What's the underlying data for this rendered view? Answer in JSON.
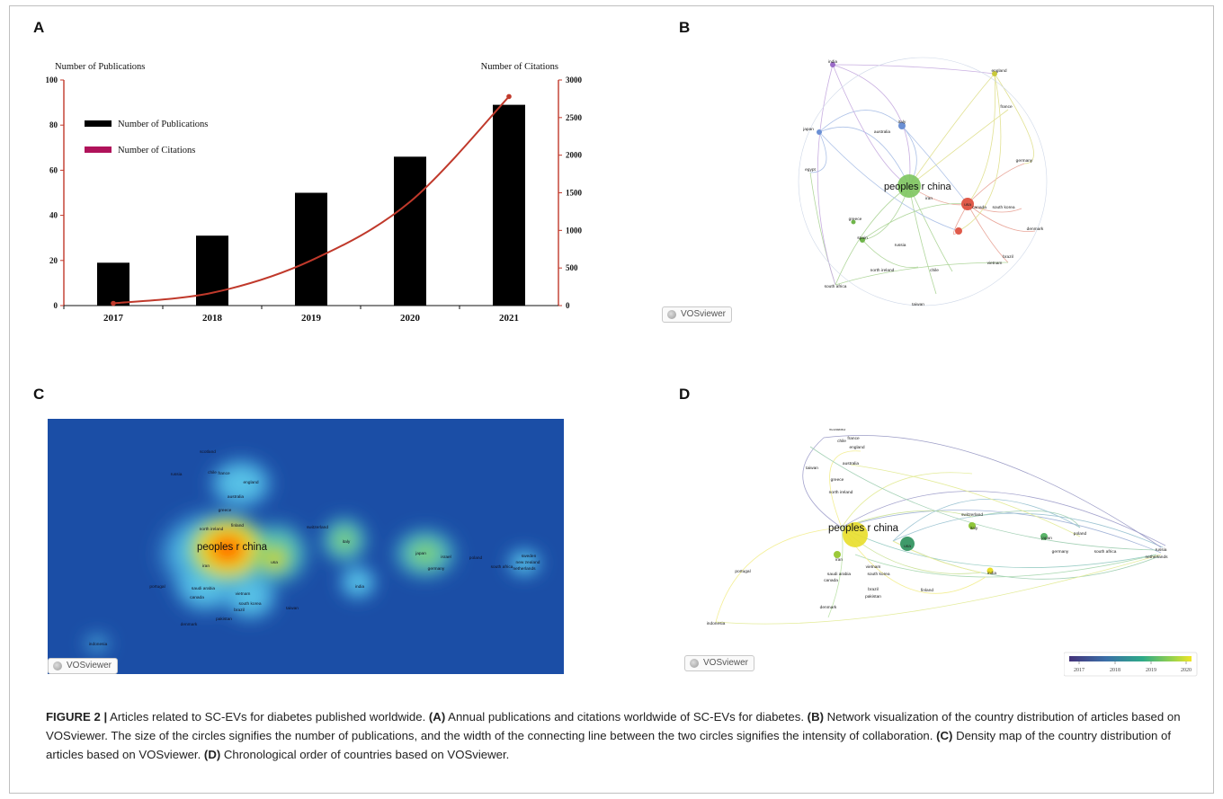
{
  "panels": {
    "a": "A",
    "b": "B",
    "c": "C",
    "d": "D"
  },
  "chart_data": {
    "type": "bar",
    "categories": [
      "2017",
      "2018",
      "2019",
      "2020",
      "2021"
    ],
    "series": [
      {
        "name": "Number of Publications",
        "type": "bar",
        "axis": "left",
        "values": [
          19,
          31,
          50,
          66,
          89
        ],
        "color": "#000000"
      },
      {
        "name": "Number of Citations",
        "type": "line",
        "axis": "right",
        "values": [
          30,
          170,
          600,
          1380,
          2780
        ],
        "color": "#c0392b"
      }
    ],
    "ylabel": "Number of Publications",
    "y2label": "Number of Citations",
    "ylim": [
      0,
      100
    ],
    "y2lim": [
      0,
      3000
    ],
    "yticks": [
      "0",
      "20",
      "40",
      "60",
      "80",
      "100"
    ],
    "y2ticks": [
      "0",
      "500",
      "1000",
      "1500",
      "2000",
      "2500",
      "3000"
    ],
    "legend": [
      "Number of Publications",
      "Number of Citations"
    ],
    "legend_position": "top-left",
    "legend_colors": [
      "#000000",
      "#b0125a"
    ]
  },
  "network_b": {
    "main_label": "peoples r china",
    "labels": [
      "india",
      "england",
      "italy",
      "france",
      "japan",
      "australia",
      "germany",
      "egypt",
      "usa",
      "canada",
      "south korea",
      "denmark",
      "iran",
      "greece",
      "spain",
      "russia",
      "brazil",
      "north ireland",
      "chile",
      "vietnam",
      "south africa",
      "taiwan"
    ],
    "watermark": "VOSviewer"
  },
  "density_c": {
    "main_label": "peoples r china",
    "labels": [
      "usa",
      "italy",
      "japan",
      "india",
      "iran",
      "south korea",
      "saudi arabia",
      "canada",
      "england",
      "australia",
      "switzerland",
      "germany",
      "france",
      "chile",
      "greece",
      "vietnam",
      "brazil",
      "pakistan",
      "portugal",
      "denmark",
      "taiwan",
      "scotland",
      "poland",
      "israel",
      "south africa",
      "new zealand",
      "netherlands",
      "sweden",
      "indonesia",
      "russia",
      "north ireland",
      "finland"
    ],
    "watermark": "VOSviewer"
  },
  "overlay_d": {
    "main_label": "peoples r china",
    "labels": [
      "usa",
      "italy",
      "japan",
      "india",
      "iran",
      "south korea",
      "saudi arabia",
      "canada",
      "england",
      "australia",
      "switzerland",
      "germany",
      "france",
      "chile",
      "greece",
      "vietnam",
      "brazil",
      "pakistan",
      "portugal",
      "denmark",
      "scotland",
      "taiwan",
      "finland",
      "poland",
      "south africa",
      "indonesia",
      "netherlands",
      "russia",
      "north ireland"
    ],
    "watermark": "VOSviewer",
    "colorbar_ticks": [
      "2017",
      "2018",
      "2019",
      "2020"
    ]
  },
  "caption": {
    "figure_label": "FIGURE 2 |",
    "intro": " Articles related to SC-EVs for diabetes published worldwide. ",
    "a_label": "(A)",
    "a_text": " Annual publications and citations worldwide of SC-EVs for diabetes. ",
    "b_label": "(B)",
    "b_text": " Network visualization of the country distribution of articles based on VOSviewer. The size of the circles signifies the number of publications, and the width of the connecting line between the two circles signifies the intensity of collaboration. ",
    "c_label": "(C)",
    "c_text": " Density map of the country distribution of articles based on VOSviewer. ",
    "d_label": "(D)",
    "d_text": " Chronological order of countries based on VOSviewer."
  }
}
